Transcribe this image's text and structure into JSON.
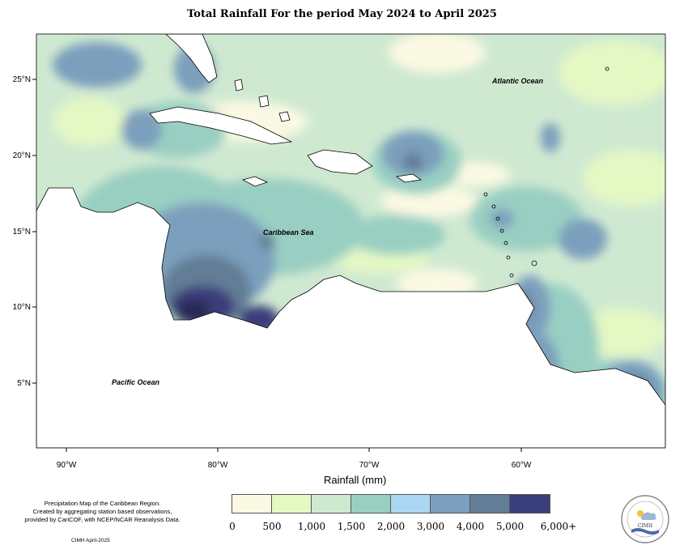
{
  "title": "Total Rainfall For the period May 2024 to April 2025",
  "map": {
    "labels": {
      "atlantic": "Atlantic Ocean",
      "caribbean": "Caribbean Sea",
      "pacific": "Pacific Ocean"
    },
    "lat_ticks": [
      "25°N",
      "20°N",
      "15°N",
      "10°N",
      "5°N"
    ],
    "lon_ticks": [
      "90°W",
      "80°W",
      "70°W",
      "60°W"
    ]
  },
  "legend": {
    "title": "Rainfall (mm)",
    "colors": [
      "#fbf9e3",
      "#e4f8c4",
      "#cfe9d1",
      "#99cfc2",
      "#acd7f2",
      "#7c9fbd",
      "#627d95",
      "#3a3e7a"
    ],
    "labels": [
      "0",
      "500",
      "1,000",
      "1,500",
      "2,000",
      "3,000",
      "4,000",
      "5,000",
      "6,000+"
    ]
  },
  "notes": {
    "line1": "Precipitation Map of the Caribbean Region.",
    "line2": "Created by aggregating station based observations,",
    "line3": "provided by CariCOF, with NCEP/NCAR Reanalysis Data."
  },
  "credit": "CIMH April-2025",
  "logo": {
    "text": "CIMH"
  }
}
